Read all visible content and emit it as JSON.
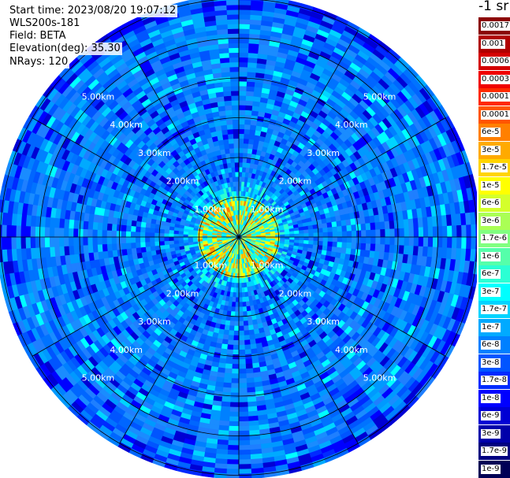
{
  "header": {
    "start_time": "Start time: 2023/08/20 19:07:12",
    "instrument": "WLS200s-181",
    "field": "Field: BETA",
    "elevation": "Elevation(deg): 35.30",
    "nrays": "NRays: 120"
  },
  "colorbar": {
    "title": "-1 sr",
    "entries": [
      {
        "label": "0.0017",
        "color": "#8b0000"
      },
      {
        "label": "0.001",
        "color": "#b00000"
      },
      {
        "label": "0.0006",
        "color": "#d40000"
      },
      {
        "label": "0.0003",
        "color": "#f00000"
      },
      {
        "label": "0.00017",
        "color": "#ff2a00"
      },
      {
        "label": "0.0001",
        "color": "#ff5500"
      },
      {
        "label": "6e-5",
        "color": "#ff8000"
      },
      {
        "label": "3e-5",
        "color": "#ffaa00"
      },
      {
        "label": "1.7e-5",
        "color": "#ffd400"
      },
      {
        "label": "1e-5",
        "color": "#ffff00"
      },
      {
        "label": "6e-6",
        "color": "#d4ff2b"
      },
      {
        "label": "3e-6",
        "color": "#aaff55"
      },
      {
        "label": "1.7e-6",
        "color": "#80ff80"
      },
      {
        "label": "1e-6",
        "color": "#55ffaa"
      },
      {
        "label": "6e-7",
        "color": "#2bffd4"
      },
      {
        "label": "3e-7",
        "color": "#00ffff"
      },
      {
        "label": "1.7e-7",
        "color": "#00d4ff"
      },
      {
        "label": "1e-7",
        "color": "#00aaff"
      },
      {
        "label": "6e-8",
        "color": "#0080ff"
      },
      {
        "label": "3e-8",
        "color": "#0055ff"
      },
      {
        "label": "1.7e-8",
        "color": "#002aff"
      },
      {
        "label": "1e-8",
        "color": "#0000ff"
      },
      {
        "label": "6e-9",
        "color": "#0000d4"
      },
      {
        "label": "3e-9",
        "color": "#0000aa"
      },
      {
        "label": "1.7e-9",
        "color": "#000080"
      },
      {
        "label": "1e-9",
        "color": "#000055"
      }
    ]
  },
  "chart_data": {
    "type": "heatmap",
    "projection": "polar (PPI scan)",
    "field": "BETA",
    "units": "-1 sr",
    "scale": "log",
    "range_rings_km": [
      1,
      2,
      3,
      4,
      5
    ],
    "ring_labels": [
      "1.00km",
      "2.00km",
      "3.00km",
      "4.00km",
      "5.00km"
    ],
    "max_range_km": 6.0,
    "radial_lines_deg": [
      0,
      30,
      60,
      90,
      120,
      150,
      180,
      210,
      240,
      270,
      300,
      330
    ],
    "background_level": "1e-8 to 1e-7 (blue)",
    "near_field_level": "1e-5 to 1e-4 (yellow/orange) within ~1 km",
    "grid": true
  }
}
